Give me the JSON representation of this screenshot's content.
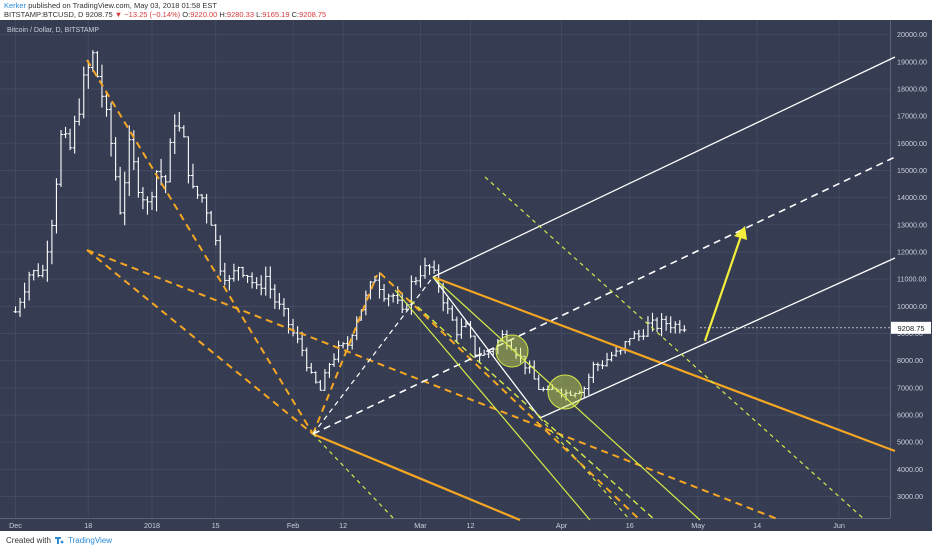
{
  "header": {
    "user": "Kerker",
    "published": "published on TradingView.com, May 03, 2018 01:58 EST",
    "symbol": "BITSTAMP:BTCUSD, D",
    "last": "9208.75",
    "change": "−13.25 (−0.14%)",
    "open_label": "O:",
    "open": "9220.00",
    "high_label": "H:",
    "high": "9280.33",
    "low_label": "L:",
    "low": "9165.19",
    "close_label": "C:",
    "close": "9208.75"
  },
  "footer": {
    "created": "Created with",
    "brand": "TradingView"
  },
  "colors": {
    "bg": "#363d52",
    "grid": "#414a60",
    "candle": "#ffffff",
    "orange": "#f5a623",
    "yellow": "#d6e94a",
    "arrow": "#f3ee3c",
    "white_line": "#ffffff"
  },
  "chart_data": {
    "type": "bar",
    "title": "Bitcoin / Dollar, D, BITSTAMP",
    "xlabel": "",
    "ylabel": "",
    "ylim": [
      2800,
      21300
    ],
    "grid": true,
    "y_ticks": [
      "21000.00",
      "20000.00",
      "19000.00",
      "18000.00",
      "17000.00",
      "16000.00",
      "15000.00",
      "14000.00",
      "13000.00",
      "12000.00",
      "11000.00",
      "10000.00",
      "9000.00",
      "8000.00",
      "7000.00",
      "6000.00",
      "5000.00",
      "4000.00",
      "3000.00"
    ],
    "y_values": [
      21000,
      20000,
      19000,
      18000,
      17000,
      16000,
      15000,
      14000,
      13000,
      12000,
      11000,
      10000,
      9000,
      8000,
      7000,
      6000,
      5000,
      4000,
      3000
    ],
    "x_ticks": [
      {
        "label": "Dec",
        "day": -30
      },
      {
        "label": "18",
        "day": -14
      },
      {
        "label": "2018",
        "day": 0
      },
      {
        "label": "15",
        "day": 14
      },
      {
        "label": "Feb",
        "day": 31
      },
      {
        "label": "12",
        "day": 42
      },
      {
        "label": "Mar",
        "day": 59
      },
      {
        "label": "12",
        "day": 70
      },
      {
        "label": "Apr",
        "day": 90
      },
      {
        "label": "16",
        "day": 105
      },
      {
        "label": "May",
        "day": 120
      },
      {
        "label": "14",
        "day": 133
      },
      {
        "label": "Jun",
        "day": 151
      }
    ],
    "last_price_label": "9208.75",
    "last_price": 9208.75,
    "series": [
      {
        "anchors": [
          {
            "day": -30,
            "price": 9800
          },
          {
            "day": -27,
            "price": 11200
          },
          {
            "day": -24,
            "price": 11300
          },
          {
            "day": -22,
            "price": 13200
          },
          {
            "day": -20,
            "price": 16200
          },
          {
            "day": -18,
            "price": 15800
          },
          {
            "day": -15,
            "price": 18200
          },
          {
            "day": -13,
            "price": 19200
          },
          {
            "day": -11,
            "price": 17800
          },
          {
            "day": -9,
            "price": 16000
          },
          {
            "day": -7,
            "price": 13600
          },
          {
            "day": -5,
            "price": 15800
          },
          {
            "day": -3,
            "price": 14500
          },
          {
            "day": -1,
            "price": 13700
          },
          {
            "day": 1,
            "price": 15000
          },
          {
            "day": 3,
            "price": 14600
          },
          {
            "day": 5,
            "price": 16900
          },
          {
            "day": 7,
            "price": 16000
          },
          {
            "day": 9,
            "price": 14200
          },
          {
            "day": 11,
            "price": 14000
          },
          {
            "day": 13,
            "price": 13200
          },
          {
            "day": 15,
            "price": 11500
          },
          {
            "day": 17,
            "price": 10900
          },
          {
            "day": 19,
            "price": 11500
          },
          {
            "day": 21,
            "price": 11200
          },
          {
            "day": 23,
            "price": 10600
          },
          {
            "day": 25,
            "price": 11100
          },
          {
            "day": 27,
            "price": 10200
          },
          {
            "day": 29,
            "price": 9700
          },
          {
            "day": 31,
            "price": 9000
          },
          {
            "day": 33,
            "price": 8400
          },
          {
            "day": 35,
            "price": 7400
          },
          {
            "day": 37,
            "price": 6900
          },
          {
            "day": 39,
            "price": 7900
          },
          {
            "day": 41,
            "price": 8400
          },
          {
            "day": 43,
            "price": 8600
          },
          {
            "day": 45,
            "price": 9600
          },
          {
            "day": 47,
            "price": 10300
          },
          {
            "day": 49,
            "price": 11100
          },
          {
            "day": 51,
            "price": 10500
          },
          {
            "day": 53,
            "price": 10400
          },
          {
            "day": 55,
            "price": 9700
          },
          {
            "day": 57,
            "price": 10800
          },
          {
            "day": 59,
            "price": 11300
          },
          {
            "day": 61,
            "price": 11400
          },
          {
            "day": 63,
            "price": 10800
          },
          {
            "day": 65,
            "price": 9800
          },
          {
            "day": 67,
            "price": 9100
          },
          {
            "day": 69,
            "price": 9200
          },
          {
            "day": 71,
            "price": 8300
          },
          {
            "day": 73,
            "price": 8200
          },
          {
            "day": 75,
            "price": 8500
          },
          {
            "day": 77,
            "price": 8900
          },
          {
            "day": 79,
            "price": 8600
          },
          {
            "day": 81,
            "price": 8100
          },
          {
            "day": 83,
            "price": 7600
          },
          {
            "day": 85,
            "price": 7000
          },
          {
            "day": 87,
            "price": 6800
          },
          {
            "day": 89,
            "price": 7000
          },
          {
            "day": 91,
            "price": 6800
          },
          {
            "day": 93,
            "price": 6900
          },
          {
            "day": 95,
            "price": 7000
          },
          {
            "day": 97,
            "price": 7800
          },
          {
            "day": 99,
            "price": 7900
          },
          {
            "day": 101,
            "price": 8200
          },
          {
            "day": 103,
            "price": 8300
          },
          {
            "day": 105,
            "price": 8900
          },
          {
            "day": 107,
            "price": 8900
          },
          {
            "day": 109,
            "price": 9300
          },
          {
            "day": 111,
            "price": 9300
          },
          {
            "day": 113,
            "price": 9400
          },
          {
            "day": 115,
            "price": 9300
          },
          {
            "day": 117,
            "price": 9300
          },
          {
            "day": 118,
            "price": 9200
          }
        ]
      }
    ]
  }
}
